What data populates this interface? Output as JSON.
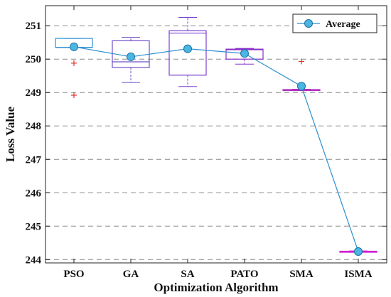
{
  "chart_data": {
    "type": "box",
    "xlabel": "Optimization Algorithm",
    "ylabel": "Loss Value",
    "ylim": [
      243.9,
      251.6
    ],
    "yticks": [
      244,
      245,
      246,
      247,
      248,
      249,
      250,
      251
    ],
    "grid": "horizontal-dashed",
    "legend": {
      "position": "top-right",
      "entries": [
        "Average"
      ]
    },
    "categories": [
      "PSO",
      "GA",
      "SA",
      "PATO",
      "SMA",
      "ISMA"
    ],
    "colors": {
      "box": [
        "#2f8fd6",
        "#6f4fc6",
        "#7a3fd0",
        "#8a2fc8",
        "#b030c0",
        "#d21fd2"
      ],
      "outlier": "#e03030",
      "average_line": "#2d8fd1",
      "average_marker": "#4bb6e3"
    },
    "boxes": [
      {
        "category": "PSO",
        "whisker_low": 250.35,
        "q1": 250.35,
        "median": 250.35,
        "q3": 250.62,
        "whisker_high": 250.62,
        "outliers": [
          249.88,
          248.92
        ]
      },
      {
        "category": "GA",
        "whisker_low": 249.3,
        "q1": 249.75,
        "median": 249.92,
        "q3": 250.55,
        "whisker_high": 250.65,
        "outliers": []
      },
      {
        "category": "SA",
        "whisker_low": 249.18,
        "q1": 249.52,
        "median": 250.78,
        "q3": 250.85,
        "whisker_high": 251.25,
        "outliers": []
      },
      {
        "category": "PATO",
        "whisker_low": 249.85,
        "q1": 250.0,
        "median": 250.28,
        "q3": 250.3,
        "whisker_high": 250.32,
        "outliers": []
      },
      {
        "category": "SMA",
        "whisker_low": 249.06,
        "q1": 249.07,
        "median": 249.08,
        "q3": 249.09,
        "whisker_high": 249.1,
        "outliers": [
          249.93
        ]
      },
      {
        "category": "ISMA",
        "whisker_low": 244.22,
        "q1": 244.23,
        "median": 244.24,
        "q3": 244.25,
        "whisker_high": 244.26,
        "outliers": []
      }
    ],
    "series": [
      {
        "name": "Average",
        "values": [
          250.37,
          250.07,
          250.31,
          250.17,
          249.19,
          244.24
        ]
      }
    ]
  }
}
